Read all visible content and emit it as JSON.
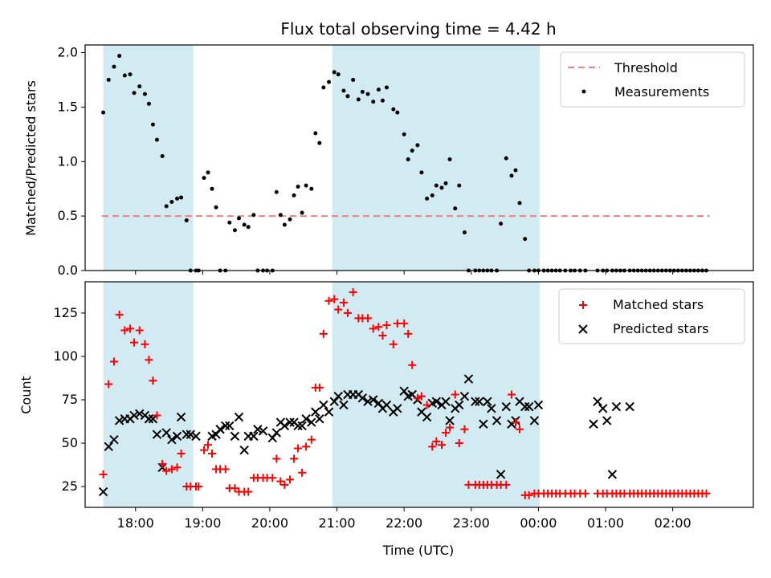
{
  "chart_data": [
    {
      "type": "scatter",
      "title": "Flux total observing time = 4.42 h",
      "ylabel": "Matched/Predicted stars",
      "xlabel": "",
      "ylim": [
        0,
        2.07
      ],
      "yticks": [
        "0.0",
        "0.5",
        "1.0",
        "1.5",
        "2.0"
      ],
      "ytick_values": [
        0,
        0.5,
        1.0,
        1.5,
        2.0
      ],
      "legend_position": "top-right",
      "threshold": {
        "name": "Threshold",
        "value": 0.5,
        "x_start": 17.5,
        "x_end": 26.55,
        "color": "#f08080"
      },
      "series": [
        {
          "name": "Measurements",
          "color": "#000000",
          "x": [
            17.52,
            17.6,
            17.68,
            17.76,
            17.84,
            17.92,
            17.98,
            18.06,
            18.14,
            18.2,
            18.26,
            18.32,
            18.4,
            18.46,
            18.54,
            18.62,
            18.68,
            18.76,
            18.82,
            18.9,
            18.94,
            19.02,
            19.08,
            19.14,
            19.2,
            19.26,
            19.34,
            19.4,
            19.48,
            19.54,
            19.62,
            19.68,
            19.76,
            19.82,
            19.9,
            19.96,
            20.04,
            20.1,
            20.16,
            20.22,
            20.3,
            20.36,
            20.42,
            20.48,
            20.54,
            20.62,
            20.68,
            20.74,
            20.8,
            20.88,
            20.96,
            21.02,
            21.1,
            21.16,
            21.24,
            21.32,
            21.38,
            21.46,
            21.54,
            21.62,
            21.68,
            21.74,
            21.84,
            21.9,
            22.0,
            22.06,
            22.12,
            22.2,
            22.26,
            22.34,
            22.42,
            22.48,
            22.56,
            22.62,
            22.68,
            22.76,
            22.82,
            22.9,
            22.96,
            23.06,
            23.12,
            23.18,
            23.24,
            23.3,
            23.38,
            23.44,
            23.52,
            23.6,
            23.66,
            23.72,
            23.8,
            23.86,
            23.94,
            24.0,
            24.08,
            24.14,
            24.2,
            24.26,
            24.32,
            24.4,
            24.48,
            24.54,
            24.62,
            24.7,
            24.88,
            24.96,
            25.02,
            25.1,
            25.16,
            25.22,
            25.28,
            25.36,
            25.42,
            25.48,
            25.54,
            25.6,
            25.66,
            25.72,
            25.78,
            25.84,
            25.9,
            25.96,
            26.02,
            26.08,
            26.14,
            26.2,
            26.26,
            26.32,
            26.38,
            26.44,
            26.5
          ],
          "y": [
            1.45,
            1.75,
            1.87,
            1.97,
            1.79,
            1.8,
            1.63,
            1.69,
            1.62,
            1.53,
            1.34,
            1.2,
            1.05,
            0.59,
            0.63,
            0.66,
            0.67,
            0.46,
            0,
            0,
            0,
            0.85,
            0.9,
            0.75,
            0.58,
            0,
            0,
            0.44,
            0.37,
            0.48,
            0.42,
            0.4,
            0.51,
            0,
            0,
            0,
            0,
            0.72,
            0.51,
            0.42,
            0.47,
            0.69,
            0.77,
            0.53,
            0.78,
            0.75,
            1.26,
            1.17,
            1.68,
            1.73,
            1.82,
            1.8,
            1.65,
            1.6,
            1.75,
            1.57,
            1.64,
            1.62,
            1.55,
            1.66,
            1.56,
            1.68,
            1.48,
            1.45,
            1.25,
            1.02,
            1.1,
            1.15,
            0.9,
            0.66,
            0.69,
            0.78,
            0.76,
            0.8,
            1.02,
            0.57,
            0.78,
            0.35,
            0,
            0,
            0,
            0,
            0,
            0,
            0,
            0.43,
            1.03,
            0.87,
            0.92,
            0.62,
            0.29,
            0,
            0,
            0,
            0,
            0,
            0,
            0,
            0,
            0,
            0,
            0,
            0,
            0,
            0,
            0,
            0,
            0,
            0,
            0,
            0,
            0,
            0,
            0,
            0,
            0,
            0,
            0,
            0,
            0,
            0,
            0,
            0,
            0,
            0,
            0,
            0,
            0,
            0,
            0,
            0
          ]
        }
      ]
    },
    {
      "type": "scatter",
      "title": "",
      "xlabel": "Time (UTC)",
      "ylabel": "Count",
      "ylim": [
        13,
        143
      ],
      "yticks": [
        "25",
        "50",
        "75",
        "100",
        "125"
      ],
      "ytick_values": [
        25,
        50,
        75,
        100,
        125
      ],
      "legend_position": "top-right",
      "series": [
        {
          "name": "Matched stars",
          "color": "#ff0000",
          "marker": "plus",
          "x": [
            17.52,
            17.6,
            17.68,
            17.76,
            17.84,
            17.92,
            17.98,
            18.06,
            18.14,
            18.2,
            18.26,
            18.32,
            18.4,
            18.46,
            18.54,
            18.62,
            18.68,
            18.76,
            18.82,
            18.9,
            18.94,
            19.02,
            19.08,
            19.14,
            19.2,
            19.26,
            19.34,
            19.4,
            19.48,
            19.54,
            19.62,
            19.68,
            19.76,
            19.82,
            19.9,
            19.96,
            20.04,
            20.1,
            20.16,
            20.22,
            20.3,
            20.36,
            20.42,
            20.48,
            20.54,
            20.62,
            20.68,
            20.74,
            20.8,
            20.88,
            20.96,
            21.02,
            21.1,
            21.16,
            21.24,
            21.32,
            21.38,
            21.46,
            21.54,
            21.62,
            21.68,
            21.74,
            21.84,
            21.9,
            22.0,
            22.06,
            22.12,
            22.2,
            22.26,
            22.34,
            22.42,
            22.48,
            22.56,
            22.62,
            22.68,
            22.76,
            22.82,
            22.9,
            22.96,
            23.06,
            23.12,
            23.18,
            23.24,
            23.3,
            23.38,
            23.44,
            23.52,
            23.6,
            23.66,
            23.72,
            23.8,
            23.86,
            23.94,
            24.0,
            24.08,
            24.14,
            24.2,
            24.26,
            24.32,
            24.4,
            24.48,
            24.54,
            24.62,
            24.7,
            24.88,
            24.96,
            25.02,
            25.1,
            25.16,
            25.22,
            25.28,
            25.36,
            25.42,
            25.48,
            25.54,
            25.6,
            25.66,
            25.72,
            25.78,
            25.84,
            25.9,
            25.96,
            26.02,
            26.08,
            26.14,
            26.2,
            26.26,
            26.32,
            26.38,
            26.44,
            26.5
          ],
          "y": [
            32,
            84,
            97,
            124,
            115,
            116,
            108,
            115,
            107,
            98,
            86,
            66,
            38,
            34,
            35,
            36,
            44,
            25,
            25,
            25,
            25,
            46,
            49,
            44,
            35,
            35,
            35,
            24,
            24,
            22,
            22,
            22,
            30,
            30,
            30,
            30,
            30,
            41,
            28,
            26,
            29,
            41,
            47,
            33,
            48,
            52,
            82,
            82,
            113,
            132,
            133,
            127,
            131,
            125,
            137,
            122,
            122,
            122,
            116,
            117,
            112,
            118,
            107,
            119,
            119,
            113,
            95,
            76,
            77,
            72,
            48,
            51,
            49,
            56,
            59,
            78,
            50,
            58,
            26,
            26,
            26,
            26,
            26,
            26,
            26,
            26,
            26,
            78,
            62,
            58,
            20,
            20,
            21,
            21,
            21,
            21,
            21,
            21,
            21,
            21,
            21,
            21,
            21,
            21,
            21,
            21,
            21,
            21,
            21,
            21,
            21,
            21,
            21,
            21,
            21,
            21,
            21,
            21,
            21,
            21,
            21,
            21,
            21,
            21,
            21,
            21,
            21,
            21,
            21,
            21,
            21
          ]
        },
        {
          "name": "Predicted stars",
          "color": "#000000",
          "marker": "x",
          "x": [
            17.52,
            17.6,
            17.68,
            17.76,
            17.84,
            17.92,
            17.98,
            18.06,
            18.14,
            18.2,
            18.26,
            18.32,
            18.4,
            18.46,
            18.54,
            18.62,
            18.68,
            18.76,
            18.82,
            18.9,
            19.14,
            19.2,
            19.26,
            19.34,
            19.4,
            19.48,
            19.54,
            19.62,
            19.68,
            19.76,
            19.82,
            19.9,
            20.04,
            20.1,
            20.16,
            20.22,
            20.3,
            20.36,
            20.42,
            20.48,
            20.54,
            20.62,
            20.68,
            20.74,
            20.8,
            20.88,
            20.96,
            21.02,
            21.1,
            21.16,
            21.24,
            21.32,
            21.38,
            21.46,
            21.54,
            21.62,
            21.68,
            21.74,
            21.84,
            21.9,
            22.0,
            22.06,
            22.12,
            22.2,
            22.26,
            22.34,
            22.42,
            22.48,
            22.56,
            22.62,
            22.68,
            22.76,
            22.82,
            22.9,
            22.96,
            23.06,
            23.12,
            23.18,
            23.24,
            23.3,
            23.38,
            23.44,
            23.52,
            23.6,
            23.66,
            23.72,
            23.8,
            23.86,
            23.94,
            24.0,
            24.82,
            24.88,
            24.96,
            25.02,
            25.1,
            25.16,
            25.36
          ],
          "y": [
            22,
            48,
            52,
            63,
            64,
            64,
            66,
            67,
            66,
            64,
            64,
            55,
            36,
            56,
            52,
            54,
            65,
            55,
            55,
            54,
            54,
            55,
            58,
            60,
            60,
            54,
            65,
            46,
            54,
            54,
            58,
            57,
            53,
            56,
            62,
            60,
            62,
            62,
            60,
            60,
            64,
            62,
            68,
            64,
            72,
            68,
            74,
            77,
            72,
            78,
            78,
            78,
            76,
            74,
            75,
            73,
            70,
            72,
            68,
            70,
            80,
            77,
            78,
            75,
            68,
            65,
            73,
            74,
            72,
            74,
            63,
            70,
            72,
            77,
            87,
            74,
            74,
            61,
            74,
            70,
            63,
            32,
            71,
            61,
            63,
            74,
            71,
            71,
            63,
            72,
            61,
            74,
            70,
            63,
            32,
            71,
            71
          ]
        }
      ],
      "xticks": [
        "18:00",
        "19:00",
        "20:00",
        "21:00",
        "22:00",
        "23:00",
        "00:00",
        "01:00",
        "02:00"
      ],
      "xtick_values": [
        18,
        19,
        20,
        21,
        22,
        23,
        24,
        25,
        26
      ]
    }
  ],
  "shared_x": {
    "xlim": [
      17.25,
      27.2
    ],
    "shaded_intervals": [
      [
        17.52,
        18.86
      ],
      [
        20.93,
        24.02
      ]
    ],
    "shade_color": "#add8e6"
  }
}
